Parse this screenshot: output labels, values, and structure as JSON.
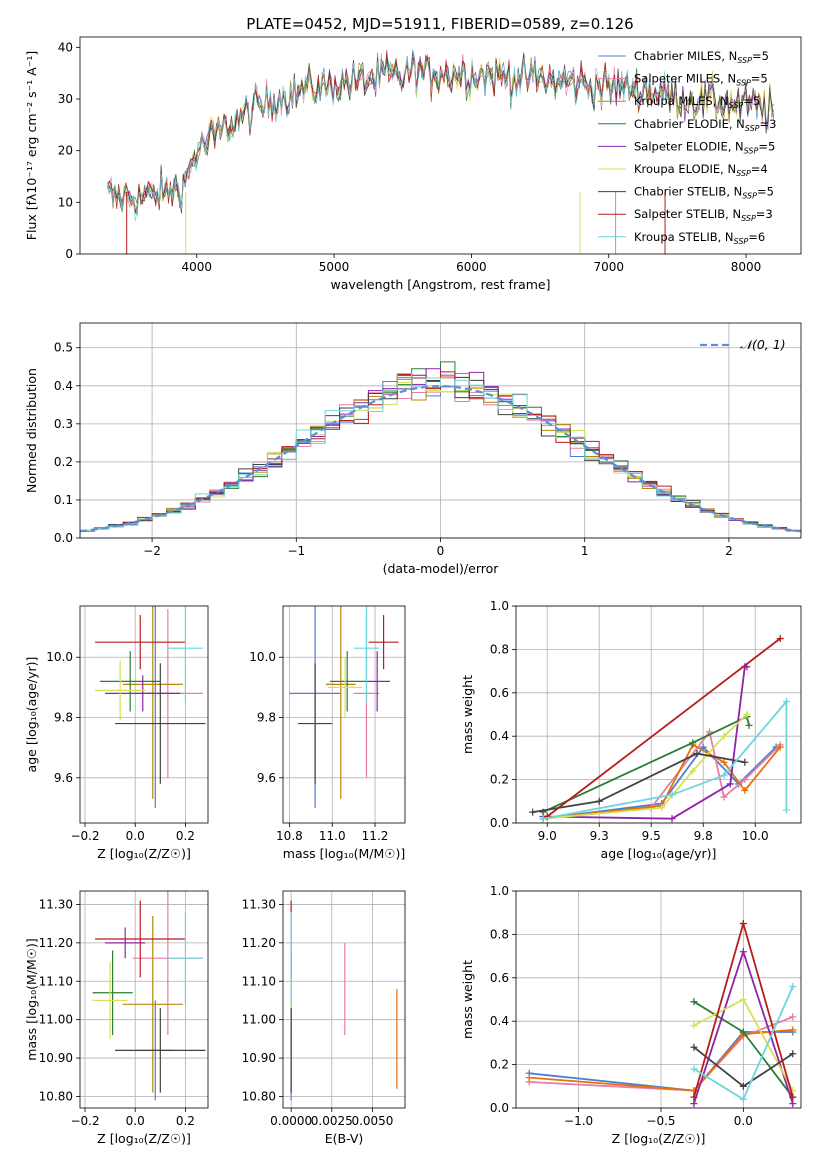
{
  "figure_title": "PLATE=0452, MJD=51911, FIBERID=0589, z=0.126",
  "colors": {
    "Chabrier MILES": "#4a7fd4",
    "Salpeter MILES": "#e87ca8",
    "Kroupa MILES": "#b8860b",
    "Chabrier ELODIE": "#2e7d32",
    "Salpeter ELODIE": "#8e24aa",
    "Kroupa ELODIE": "#d4e157",
    "Chabrier STELIB": "#424242",
    "Salpeter STELIB": "#b71c1c",
    "Kroupa STELIB": "#6dd5dc",
    "orange": "#e8710a",
    "gaussian": "#5b8fd9"
  },
  "chart_data": [
    {
      "type": "line",
      "name": "spectrum",
      "xlabel": "wavelength [Angstrom, rest frame]",
      "ylabel": "Flux [fλ10⁻¹⁷ erg cm⁻² s⁻¹ A⁻¹]",
      "xlim": [
        3150,
        8400
      ],
      "ylim": [
        0,
        42
      ],
      "xticks": [
        4000,
        5000,
        6000,
        7000,
        8000
      ],
      "yticks": [
        0,
        10,
        20,
        30,
        40
      ],
      "legend_position": "right",
      "series": [
        {
          "name": "Chabrier MILES",
          "label": "Chabrier MILES, N",
          "sub": "SSP",
          "n": "=5"
        },
        {
          "name": "Salpeter MILES",
          "label": "Salpeter MILES, N",
          "sub": "SSP",
          "n": "=5"
        },
        {
          "name": "Kroupa MILES",
          "label": "Kroupa MILES, N",
          "sub": "SSP",
          "n": "=5"
        },
        {
          "name": "Chabrier ELODIE",
          "label": "Chabrier ELODIE, N",
          "sub": "SSP",
          "n": "=3"
        },
        {
          "name": "Salpeter ELODIE",
          "label": "Salpeter ELODIE, N",
          "sub": "SSP",
          "n": "=5"
        },
        {
          "name": "Kroupa ELODIE",
          "label": "Kroupa ELODIE, N",
          "sub": "SSP",
          "n": "=4"
        },
        {
          "name": "Chabrier STELIB",
          "label": "Chabrier STELIB, N",
          "sub": "SSP",
          "n": "=5"
        },
        {
          "name": "Salpeter STELIB",
          "label": "Salpeter STELIB, N",
          "sub": "SSP",
          "n": "=3"
        },
        {
          "name": "Kroupa STELIB",
          "label": "Kroupa STELIB, N",
          "sub": "SSP",
          "n": "=6"
        }
      ],
      "continuum": {
        "x": [
          3350,
          3500,
          3700,
          3900,
          4000,
          4200,
          4400,
          4700,
          5000,
          5300,
          5600,
          6000,
          6400,
          6800,
          7200,
          7600,
          8000,
          8200
        ],
        "y": [
          11,
          11,
          11.5,
          13,
          20,
          24,
          28,
          31,
          33,
          34,
          35,
          35,
          34,
          33,
          32,
          30,
          29,
          28
        ]
      }
    },
    {
      "type": "bar",
      "name": "residual-histogram",
      "xlabel": "(data-model)/error",
      "ylabel": "Normed distribution",
      "xlim": [
        -2.5,
        2.5
      ],
      "ylim": [
        0,
        0.565
      ],
      "xticks": [
        -2,
        -1,
        0,
        1,
        2
      ],
      "yticks": [
        0.0,
        0.1,
        0.2,
        0.3,
        0.4,
        0.5
      ],
      "legend_label": "𝒩(0, 1)",
      "legend_position": "top-right",
      "bin_width": 0.1,
      "grid": true
    },
    {
      "type": "scatter",
      "name": "age-vs-Z",
      "xlabel": "Z [log₁₀(Z/Z☉)]",
      "ylabel": "age  [log₁₀(age/yr)]",
      "xlim": [
        -0.22,
        0.29
      ],
      "ylim": [
        9.45,
        10.17
      ],
      "xticks": [
        -0.2,
        0.0,
        0.2
      ],
      "yticks": [
        9.6,
        9.8,
        10.0
      ],
      "points": [
        {
          "name": "Chabrier MILES",
          "x": 0.08,
          "xerr": 0.07,
          "y": 9.88,
          "yerr": 0.38
        },
        {
          "name": "Salpeter MILES",
          "x": 0.13,
          "xerr": 0.14,
          "y": 9.88,
          "yerr": 0.28
        },
        {
          "name": "Kroupa MILES",
          "x": 0.07,
          "xerr": 0.12,
          "y": 9.91,
          "yerr": 0.38
        },
        {
          "name": "Chabrier ELODIE",
          "x": -0.02,
          "xerr": 0.12,
          "y": 9.92,
          "yerr": 0.1
        },
        {
          "name": "Salpeter ELODIE",
          "x": 0.03,
          "xerr": 0.15,
          "y": 9.88,
          "yerr": 0.06
        },
        {
          "name": "Kroupa ELODIE",
          "x": -0.06,
          "xerr": 0.1,
          "y": 9.89,
          "yerr": 0.1
        },
        {
          "name": "Chabrier STELIB",
          "x": 0.1,
          "xerr": 0.18,
          "y": 9.78,
          "yerr": 0.2
        },
        {
          "name": "Salpeter STELIB",
          "x": 0.02,
          "xerr": 0.18,
          "y": 10.05,
          "yerr": 0.09
        },
        {
          "name": "Kroupa STELIB",
          "x": 0.2,
          "xerr": 0.07,
          "y": 10.03,
          "yerr": 0.18
        }
      ]
    },
    {
      "type": "scatter",
      "name": "age-vs-mass",
      "xlabel": "mass [log₁₀(M/M☉)]",
      "ylabel": "",
      "xlim": [
        10.77,
        11.34
      ],
      "ylim": [
        9.45,
        10.17
      ],
      "xticks": [
        10.8,
        11.0,
        11.2
      ],
      "yticks": [
        9.6,
        9.8,
        10.0
      ],
      "points": [
        {
          "name": "Chabrier MILES",
          "x": 10.92,
          "xerr": 0.12,
          "y": 9.88,
          "yerr": 0.38
        },
        {
          "name": "Salpeter MILES",
          "x": 11.16,
          "xerr": 0.06,
          "y": 9.88,
          "yerr": 0.28
        },
        {
          "name": "Kroupa MILES",
          "x": 11.04,
          "xerr": 0.07,
          "y": 9.91,
          "yerr": 0.38
        },
        {
          "name": "Chabrier ELODIE",
          "x": 11.07,
          "xerr": 0.08,
          "y": 9.92,
          "yerr": 0.1
        },
        {
          "name": "Salpeter ELODIE",
          "x": 11.21,
          "xerr": 0.06,
          "y": 9.92,
          "yerr": 0.1
        },
        {
          "name": "Kroupa ELODIE",
          "x": 11.06,
          "xerr": 0.08,
          "y": 9.9,
          "yerr": 0.1
        },
        {
          "name": "Chabrier STELIB",
          "x": 10.92,
          "xerr": 0.08,
          "y": 9.78,
          "yerr": 0.2
        },
        {
          "name": "Salpeter STELIB",
          "x": 11.24,
          "xerr": 0.07,
          "y": 10.05,
          "yerr": 0.09
        },
        {
          "name": "Kroupa STELIB",
          "x": 11.16,
          "xerr": 0.06,
          "y": 10.03,
          "yerr": 0.18
        }
      ]
    },
    {
      "type": "line",
      "name": "mass-weight-vs-age",
      "xlabel": "age  [log₁₀(age/yr)]",
      "ylabel": "mass weight",
      "xlim": [
        8.85,
        10.22
      ],
      "ylim": [
        0,
        1.0
      ],
      "xticks": [
        9.0,
        9.25,
        9.5,
        9.75,
        10.0
      ],
      "yticks": [
        0.0,
        0.2,
        0.4,
        0.6,
        0.8,
        1.0
      ],
      "series": [
        {
          "name": "Chabrier MILES",
          "x": [
            8.98,
            9.55,
            9.75,
            9.92,
            10.1
          ],
          "y": [
            0.02,
            0.09,
            0.35,
            0.18,
            0.35
          ]
        },
        {
          "name": "Salpeter MILES",
          "x": [
            8.98,
            9.5,
            9.78,
            9.85,
            9.95,
            10.12
          ],
          "y": [
            0.02,
            0.07,
            0.42,
            0.12,
            0.2,
            0.36
          ]
        },
        {
          "name": "orange",
          "x": [
            8.98,
            9.55,
            9.7,
            9.85,
            9.95,
            10.12
          ],
          "y": [
            0.02,
            0.08,
            0.36,
            0.28,
            0.15,
            0.35
          ]
        },
        {
          "name": "Chabrier ELODIE",
          "x": [
            8.98,
            9.7,
            9.96,
            9.97
          ],
          "y": [
            0.05,
            0.37,
            0.49,
            0.45
          ]
        },
        {
          "name": "Salpeter ELODIE",
          "x": [
            8.98,
            9.6,
            9.88,
            9.95,
            9.96
          ],
          "y": [
            0.03,
            0.02,
            0.18,
            0.72,
            0.72
          ]
        },
        {
          "name": "Kroupa ELODIE",
          "x": [
            8.98,
            9.55,
            9.7,
            9.85,
            9.96
          ],
          "y": [
            0.02,
            0.07,
            0.24,
            0.4,
            0.5
          ]
        },
        {
          "name": "Chabrier STELIB",
          "x": [
            8.93,
            9.25,
            9.72,
            9.95
          ],
          "y": [
            0.05,
            0.1,
            0.32,
            0.28
          ]
        },
        {
          "name": "Salpeter STELIB",
          "x": [
            9.0,
            10.12
          ],
          "y": [
            0.03,
            0.85
          ]
        },
        {
          "name": "Kroupa STELIB",
          "x": [
            8.98,
            9.6,
            9.85,
            10.15,
            10.15
          ],
          "y": [
            0.02,
            0.13,
            0.22,
            0.56,
            0.06
          ]
        }
      ]
    },
    {
      "type": "scatter",
      "name": "mass-vs-Z",
      "xlabel": "Z [log₁₀(Z/Z☉)]",
      "ylabel": "mass [log₁₀(M/M☉)]",
      "xlim": [
        -0.22,
        0.29
      ],
      "ylim": [
        10.77,
        11.335
      ],
      "xticks": [
        -0.2,
        0.0,
        0.2
      ],
      "yticks": [
        10.8,
        10.9,
        11.0,
        11.1,
        11.2,
        11.3
      ],
      "points": [
        {
          "name": "Chabrier MILES",
          "x": 0.08,
          "xerr": 0.07,
          "y": 10.92,
          "yerr": 0.13
        },
        {
          "name": "Salpeter MILES",
          "x": 0.13,
          "xerr": 0.14,
          "y": 11.16,
          "yerr": 0.2
        },
        {
          "name": "Kroupa MILES",
          "x": 0.07,
          "xerr": 0.12,
          "y": 11.04,
          "yerr": 0.23
        },
        {
          "name": "Chabrier ELODIE",
          "x": -0.09,
          "xerr": 0.08,
          "y": 11.07,
          "yerr": 0.11
        },
        {
          "name": "Salpeter ELODIE",
          "x": -0.04,
          "xerr": 0.08,
          "y": 11.2,
          "yerr": 0.04
        },
        {
          "name": "Kroupa ELODIE",
          "x": -0.1,
          "xerr": 0.07,
          "y": 11.05,
          "yerr": 0.1
        },
        {
          "name": "Chabrier STELIB",
          "x": 0.1,
          "xerr": 0.18,
          "y": 10.92,
          "yerr": 0.11
        },
        {
          "name": "Salpeter STELIB",
          "x": 0.02,
          "xerr": 0.18,
          "y": 11.21,
          "yerr": 0.1
        },
        {
          "name": "Kroupa STELIB",
          "x": 0.2,
          "xerr": 0.07,
          "y": 11.16,
          "yerr": 0.12
        }
      ]
    },
    {
      "type": "scatter",
      "name": "mass-vs-EBV",
      "xlabel": "E(B-V)",
      "ylabel": "",
      "xlim": [
        -0.0005,
        0.007
      ],
      "ylim": [
        10.77,
        11.335
      ],
      "xticks": [
        0.0,
        0.0025,
        0.005
      ],
      "xticklabels": [
        "0.0000",
        "0.0025",
        "0.0050"
      ],
      "yticks": [
        10.8,
        10.9,
        11.0,
        11.1,
        11.2,
        11.3
      ],
      "points": [
        {
          "name": "Chabrier MILES",
          "x": 0.0,
          "y": 10.92,
          "yerr": 0.13
        },
        {
          "name": "Salpeter MILES",
          "x": 0.0033,
          "y": 11.08,
          "yerr": 0.12
        },
        {
          "name": "orange",
          "x": 0.0065,
          "y": 10.95,
          "yerr": 0.13
        },
        {
          "name": "Chabrier ELODIE",
          "x": 0.0,
          "y": 11.07,
          "yerr": 0.1
        },
        {
          "name": "Kroupa ELODIE",
          "x": 0.0,
          "y": 11.05,
          "yerr": 0.1
        },
        {
          "name": "Chabrier STELIB",
          "x": 0.0,
          "y": 10.92,
          "yerr": 0.11
        },
        {
          "name": "Salpeter STELIB",
          "x": 0.0,
          "y": 11.21,
          "yerr": 0.1
        },
        {
          "name": "Kroupa STELIB",
          "x": 0.0,
          "y": 11.16,
          "yerr": 0.12
        }
      ]
    },
    {
      "type": "line",
      "name": "mass-weight-vs-Z",
      "xlabel": "Z [log₁₀(Z/Z☉)]",
      "ylabel": "mass weight",
      "xlim": [
        -1.38,
        0.35
      ],
      "ylim": [
        0,
        1.0
      ],
      "xticks": [
        -1.0,
        -0.5,
        0.0
      ],
      "yticks": [
        0.0,
        0.2,
        0.4,
        0.6,
        0.8,
        1.0
      ],
      "series": [
        {
          "name": "Chabrier MILES",
          "x": [
            -1.3,
            -0.3,
            0.0,
            0.3
          ],
          "y": [
            0.16,
            0.08,
            0.35,
            0.35
          ]
        },
        {
          "name": "Salpeter MILES",
          "x": [
            -1.3,
            -0.3,
            0.0,
            0.3
          ],
          "y": [
            0.12,
            0.08,
            0.33,
            0.42
          ]
        },
        {
          "name": "orange",
          "x": [
            -1.3,
            -0.3,
            0.0,
            0.3
          ],
          "y": [
            0.14,
            0.08,
            0.34,
            0.36
          ]
        },
        {
          "name": "Chabrier ELODIE",
          "x": [
            -0.3,
            0.0,
            0.3
          ],
          "y": [
            0.49,
            0.35,
            0.05
          ]
        },
        {
          "name": "Salpeter ELODIE",
          "x": [
            -0.3,
            0.0,
            0.3
          ],
          "y": [
            0.02,
            0.72,
            0.02
          ]
        },
        {
          "name": "Kroupa ELODIE",
          "x": [
            -0.3,
            0.0,
            0.3
          ],
          "y": [
            0.38,
            0.5,
            0.08
          ]
        },
        {
          "name": "Chabrier STELIB",
          "x": [
            -0.3,
            0.0,
            0.3
          ],
          "y": [
            0.28,
            0.1,
            0.25
          ]
        },
        {
          "name": "Salpeter STELIB",
          "x": [
            -0.3,
            0.0,
            0.3
          ],
          "y": [
            0.05,
            0.85,
            0.05
          ]
        },
        {
          "name": "Kroupa STELIB",
          "x": [
            -0.3,
            0.0,
            0.3
          ],
          "y": [
            0.18,
            0.04,
            0.56
          ]
        }
      ]
    }
  ]
}
